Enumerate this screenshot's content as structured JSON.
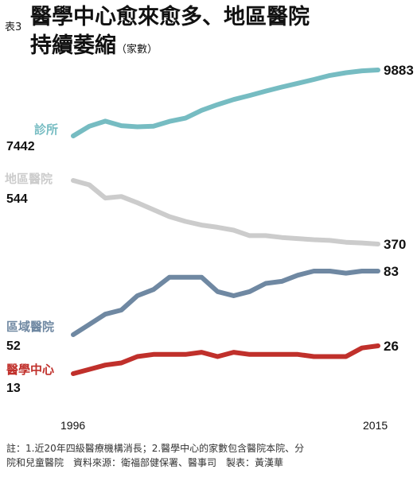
{
  "header": {
    "table_tag": "表3",
    "title_line1": "醫學中心愈來愈多、地區醫院",
    "title_line2": "持續萎縮",
    "unit": "（家數）"
  },
  "footnote": {
    "line1": "註：1.近20年四級醫療機構消長；2.醫學中心的家數包含醫院本院、分",
    "line2": "院和兒童醫院　資料來源：衛福部健保署、醫事司　製表：黃漢華"
  },
  "chart_data": {
    "type": "line",
    "title": "醫學中心愈來愈多、地區醫院持續萎縮",
    "unit": "（家數）",
    "x": [
      1996,
      1997,
      1998,
      1999,
      2000,
      2001,
      2002,
      2003,
      2004,
      2005,
      2006,
      2007,
      2008,
      2009,
      2010,
      2011,
      2012,
      2013,
      2014,
      2015
    ],
    "x_tick_labels": [
      "1996",
      "2015"
    ],
    "colors": {
      "clinic": "#76bcc2",
      "district": "#cccccc",
      "regional": "#6f88a2",
      "medical_center": "#c0302b"
    },
    "series": [
      {
        "name": "診所",
        "start_label": "7442",
        "end_label": "9883",
        "values": [
          7442,
          7800,
          7990,
          7820,
          7780,
          7800,
          7980,
          8100,
          8390,
          8600,
          8790,
          8940,
          9100,
          9250,
          9390,
          9530,
          9680,
          9780,
          9850,
          9883
        ]
      },
      {
        "name": "地區醫院",
        "start_label": "544",
        "end_label": "370",
        "values": [
          544,
          532,
          496,
          500,
          483,
          464,
          445,
          432,
          422,
          416,
          408,
          393,
          393,
          388,
          385,
          382,
          380,
          375,
          373,
          370
        ]
      },
      {
        "name": "區域醫院",
        "start_label": "52",
        "end_label": "83",
        "values": [
          52,
          57,
          62,
          64,
          71,
          74,
          80,
          80,
          80,
          73,
          71,
          73,
          77,
          78,
          81,
          83,
          83,
          82,
          83,
          83
        ]
      },
      {
        "name": "醫學中心",
        "start_label": "13",
        "end_label": "26",
        "values": [
          13,
          15,
          17,
          18,
          21,
          22,
          22,
          22,
          23,
          21,
          23,
          22,
          22,
          22,
          22,
          21,
          21,
          21,
          25,
          26
        ]
      }
    ]
  }
}
